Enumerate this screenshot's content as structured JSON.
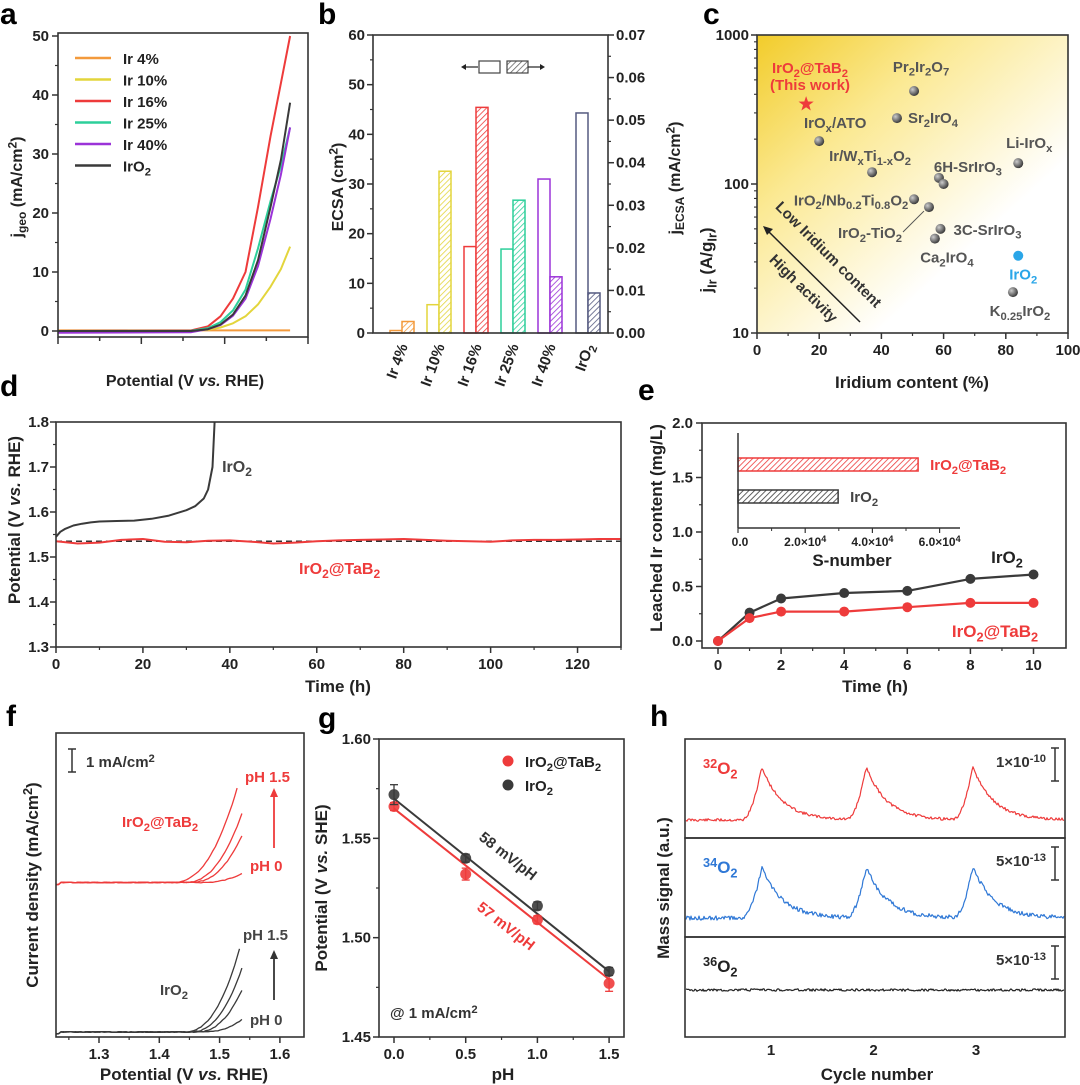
{
  "figure": {
    "panel_labels": {
      "a": "a",
      "b": "b",
      "c": "c",
      "d": "d",
      "e": "e",
      "f": "f",
      "g": "g",
      "h": "h"
    }
  },
  "chart_data": [
    {
      "id": "a",
      "type": "line",
      "xlabel": "Potential (V *vs.* RHE)",
      "ylabel": "j_{geo} (mA/cm^{2})",
      "ylim": [
        0,
        50
      ],
      "yticks": [
        0,
        10,
        20,
        30,
        40,
        50
      ],
      "xlim": [
        0,
        6
      ],
      "x": [
        0,
        3.2,
        3.6,
        3.9,
        4.2,
        4.5,
        4.8,
        5.1,
        5.35,
        5.57
      ],
      "series": [
        {
          "name": "Ir 4%",
          "color": "#f39a3c",
          "values": [
            0.1,
            0.1,
            0.1,
            0.1,
            0.1,
            0.1,
            0.1,
            0.1,
            0.1,
            0.1
          ]
        },
        {
          "name": "Ir 10%",
          "color": "#e3d53c",
          "values": [
            0,
            0,
            0.2,
            0.6,
            1.3,
            2.5,
            4.5,
            7.5,
            10.5,
            14.3
          ]
        },
        {
          "name": "Ir 16%",
          "color": "#ee3b3b",
          "values": [
            0,
            0.1,
            0.8,
            2.5,
            5.5,
            10,
            21,
            33,
            42,
            50
          ]
        },
        {
          "name": "Ir 25%",
          "color": "#2dcf9a",
          "values": [
            0,
            0.05,
            0.5,
            1.5,
            3.5,
            7,
            14,
            22,
            28,
            34.5
          ]
        },
        {
          "name": "Ir 40%",
          "color": "#9b33d8",
          "values": [
            -0.3,
            -0.2,
            0.3,
            1,
            2.6,
            5.5,
            11,
            19,
            26.5,
            34.5
          ]
        },
        {
          "name": "IrO_{2}",
          "color": "#3a3a3a",
          "values": [
            0,
            0,
            0.3,
            1.1,
            2.8,
            6,
            12,
            21,
            29,
            38.7
          ]
        }
      ]
    },
    {
      "id": "b",
      "type": "bar",
      "ylabel": "ECSA (cm^{2})",
      "ylabel_right": "j_{ECSA} (mA/cm^{2})",
      "ylim": [
        0,
        60
      ],
      "ylim_right": [
        0,
        0.07
      ],
      "yticks": [
        0,
        10,
        20,
        30,
        40,
        50,
        60
      ],
      "yticks_right": [
        0,
        0.01,
        0.02,
        0.03,
        0.04,
        0.05,
        0.06,
        0.07
      ],
      "categories": [
        "Ir 4%",
        "Ir 10%",
        "Ir 16%",
        "Ir 25%",
        "Ir 40%",
        "IrO_{2}"
      ],
      "colors": [
        "#f39a3c",
        "#e3d53c",
        "#ee3b3b",
        "#2dcf9a",
        "#9b33d8",
        "#555a80"
      ],
      "series": [
        {
          "name": "ECSA (left axis, open bars)",
          "values": [
            0.5,
            5.7,
            17.4,
            16.9,
            31.0,
            44.3
          ]
        },
        {
          "name": "j_ECSA (right axis, hatched bars)",
          "values": [
            0.0027,
            0.038,
            0.053,
            0.0312,
            0.0132,
            0.0094
          ]
        }
      ]
    },
    {
      "id": "c",
      "type": "scatter",
      "xlabel": "Iridium content (%)",
      "ylabel": "j_{Ir} (A/g_{Ir})",
      "xlim": [
        0,
        100
      ],
      "xticks": [
        0,
        20,
        40,
        60,
        80,
        100
      ],
      "ylim": [
        10,
        1000
      ],
      "yscale": "log",
      "yticks": [
        10,
        100,
        1000
      ],
      "arrow_text": [
        "Low Iridium content",
        "High activity"
      ],
      "highlight": {
        "name": "IrO_{2}@TaB_{2}",
        "subtitle": "(This work)",
        "x": 15.8,
        "y": 344,
        "color": "#ee3b3b"
      },
      "points": [
        {
          "name": "Pr_{2}Ir_{2}O_{7}",
          "x": 50.5,
          "y": 421
        },
        {
          "name": "Sr_{2}IrO_{4}",
          "x": 45,
          "y": 277
        },
        {
          "name": "IrO_{x}/ATO",
          "x": 20,
          "y": 194
        },
        {
          "name": "Ir/W_{x}Ti_{1-x}O_{2}",
          "x": 37,
          "y": 120
        },
        {
          "name": "6H-SrIrO_{3}",
          "x": 58.5,
          "y": 110
        },
        {
          "name": "",
          "x": 60,
          "y": 100
        },
        {
          "name": "Li-IrO_{x}",
          "x": 84,
          "y": 138
        },
        {
          "name": "IrO_{2}/Nb_{0.2}Ti_{0.8}O_{2}",
          "x": 50.5,
          "y": 79
        },
        {
          "name": "IrO_{2}-TiO_{2}",
          "x": 55.3,
          "y": 70
        },
        {
          "name": "3C-SrIrO_{3}",
          "x": 59,
          "y": 50
        },
        {
          "name": "Ca_{2}IrO_{4}",
          "x": 57.2,
          "y": 43
        },
        {
          "name": "IrO_{2}",
          "x": 84,
          "y": 33,
          "color": "#2aa6e8"
        },
        {
          "name": "K_{0.25}IrO_{2}",
          "x": 82.3,
          "y": 18.8
        }
      ]
    },
    {
      "id": "d",
      "type": "line",
      "xlabel": "Time (h)",
      "ylabel": "Potential (V *vs.* RHE)",
      "xlim": [
        0,
        130
      ],
      "xticks": [
        0,
        20,
        40,
        60,
        80,
        100,
        120
      ],
      "ylim": [
        1.3,
        1.8
      ],
      "yticks": [
        1.3,
        1.4,
        1.5,
        1.6,
        1.7,
        1.8
      ],
      "reference_line": 1.535,
      "series": [
        {
          "name": "IrO_{2}",
          "color": "#3a3a3a",
          "t": [
            0,
            1,
            2,
            4,
            6,
            8,
            10,
            14,
            18,
            22,
            26,
            30,
            32,
            34,
            35,
            36,
            36.5
          ],
          "values": [
            1.545,
            1.556,
            1.562,
            1.57,
            1.574,
            1.577,
            1.579,
            1.58,
            1.581,
            1.585,
            1.592,
            1.604,
            1.613,
            1.63,
            1.65,
            1.7,
            1.8
          ]
        },
        {
          "name": "IrO_{2}@TaB_{2}",
          "color": "#ee3b3b",
          "t": [
            0,
            5,
            10,
            15,
            20,
            25,
            30,
            35,
            40,
            45,
            50,
            55,
            60,
            65,
            70,
            75,
            80,
            85,
            90,
            95,
            100,
            105,
            110,
            115,
            120,
            125,
            130
          ],
          "values": [
            1.535,
            1.53,
            1.532,
            1.538,
            1.54,
            1.534,
            1.533,
            1.536,
            1.537,
            1.534,
            1.53,
            1.532,
            1.535,
            1.537,
            1.538,
            1.539,
            1.54,
            1.538,
            1.536,
            1.535,
            1.534,
            1.537,
            1.538,
            1.538,
            1.539,
            1.54,
            1.54
          ]
        }
      ]
    },
    {
      "id": "e",
      "type": "line",
      "xlabel": "Time (h)",
      "ylabel": "Leached Ir content (mg/L)",
      "xlim": [
        0,
        10.5
      ],
      "xticks": [
        0,
        2,
        4,
        6,
        8,
        10
      ],
      "ylim": [
        0,
        2.0
      ],
      "yticks": [
        0,
        0.5,
        1.0,
        1.5,
        2.0
      ],
      "x": [
        0,
        1,
        2,
        4,
        6,
        8,
        10
      ],
      "series": [
        {
          "name": "IrO_{2}",
          "color": "#3a3a3a",
          "values": [
            0,
            0.26,
            0.39,
            0.44,
            0.46,
            0.57,
            0.61
          ]
        },
        {
          "name": "IrO_{2}@TaB_{2}",
          "color": "#ee3b3b",
          "values": [
            0,
            0.21,
            0.27,
            0.27,
            0.31,
            0.35,
            0.35
          ]
        }
      ],
      "inset": {
        "type": "bar",
        "orientation": "horizontal",
        "xlabel": "S-number",
        "xticks": [
          0,
          20000,
          40000,
          60000
        ],
        "xtick_labels": [
          "0.0",
          "2.0×10^{4}",
          "4.0×10^{4}",
          "6.0×10^{4}"
        ],
        "bars": [
          {
            "name": "IrO_{2}@TaB_{2}",
            "value": 53600,
            "color": "#ee3b3b"
          },
          {
            "name": "IrO_{2}",
            "value": 29800,
            "color": "#3a3a3a"
          }
        ]
      }
    },
    {
      "id": "f",
      "type": "line",
      "xlabel": "Potential (V *vs.* RHE)",
      "ylabel": "Current density (mA/cm^{2})",
      "xlim": [
        1.229,
        1.64
      ],
      "xticks": [
        1.3,
        1.4,
        1.5,
        1.6
      ],
      "scale_bar": "1 mA/cm^{2}",
      "scale_bar_value": 1,
      "groups": [
        {
          "name": "IrO_{2}@TaB_{2}",
          "color": "#ee3b3b",
          "offset": 6.5,
          "label_high": "pH 1.5",
          "label_low": "pH 0",
          "curves": [
            {
              "pH": 0,
              "onset": 1.47,
              "end": 1.54,
              "jmax": 0.45
            },
            {
              "pH": 0.5,
              "onset": 1.45,
              "end": 1.54,
              "jmax": 2.2
            },
            {
              "pH": 1.0,
              "onset": 1.44,
              "end": 1.537,
              "jmax": 3.0
            },
            {
              "pH": 1.5,
              "onset": 1.42,
              "end": 1.53,
              "jmax": 4.2
            }
          ]
        },
        {
          "name": "IrO_{2}",
          "color": "#3a3a3a",
          "offset": 0,
          "label_high": "pH 1.5",
          "label_low": "pH 0",
          "curves": [
            {
              "pH": 0,
              "onset": 1.47,
              "end": 1.54,
              "jmax": 0.6
            },
            {
              "pH": 0.5,
              "onset": 1.46,
              "end": 1.54,
              "jmax": 2.0
            },
            {
              "pH": 1.0,
              "onset": 1.45,
              "end": 1.54,
              "jmax": 3.0
            },
            {
              "pH": 1.5,
              "onset": 1.44,
              "end": 1.535,
              "jmax": 3.8
            }
          ]
        }
      ]
    },
    {
      "id": "g",
      "type": "scatter",
      "xlabel": "pH",
      "ylabel": "Potential (V *vs.* SHE)",
      "xlim": [
        -0.1,
        1.61
      ],
      "xticks": [
        0.0,
        0.5,
        1.0,
        1.5
      ],
      "ylim": [
        1.45,
        1.6
      ],
      "yticks": [
        1.45,
        1.5,
        1.55,
        1.6
      ],
      "annotation": "@ 1 mA/cm^{2}",
      "x": [
        0,
        0.5,
        1.0,
        1.5
      ],
      "series": [
        {
          "name": "IrO_{2}@TaB_{2}",
          "color": "#ee3b3b",
          "values": [
            1.566,
            1.532,
            1.509,
            1.477
          ],
          "errors": [
            0.002,
            0.003,
            0.002,
            0.004
          ],
          "fit": [
            1.565,
            1.479
          ],
          "slope_label": "57 mV/pH"
        },
        {
          "name": "IrO_{2}",
          "color": "#3a3a3a",
          "values": [
            1.572,
            1.54,
            1.516,
            1.483
          ],
          "errors": [
            0.005,
            0.002,
            0.002,
            0.002
          ],
          "fit": [
            1.57,
            1.483
          ],
          "slope_label": "58 mV/pH"
        }
      ]
    },
    {
      "id": "h",
      "type": "line",
      "xlabel": "Cycle number",
      "ylabel": "Mass signal (a.u.)",
      "xticks": [
        1,
        2,
        3
      ],
      "peak_cycles": [
        0.91,
        1.93,
        2.97
      ],
      "series": [
        {
          "name": "^{32}O_{2}",
          "color": "#ee3b3b",
          "scale": "1×10^{-10}",
          "relative_peak": 1
        },
        {
          "name": "^{34}O_{2}",
          "color": "#2f78d6",
          "scale": "5×10^{-13}",
          "relative_peak": 1
        },
        {
          "name": "^{36}O_{2}",
          "color": "#222222",
          "scale": "5×10^{-13}",
          "relative_peak": 0
        }
      ]
    }
  ]
}
